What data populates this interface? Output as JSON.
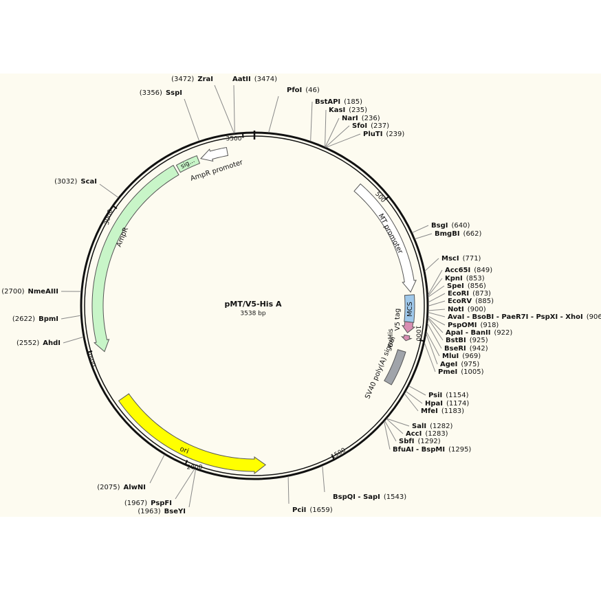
{
  "title": "pMT/V5-His A",
  "subtitle": "3538 bp",
  "ticks": [
    500,
    1000,
    1500,
    2000,
    2500,
    3000,
    3500
  ],
  "features": [
    "AmpR promoter",
    "sig...",
    "AmpR",
    "MT promoter",
    "MCS",
    "V5 tag",
    "6xHis",
    "SV40 poly(A) signal",
    "ori"
  ],
  "sites": [
    {
      "name": "ZraI",
      "position": 3472,
      "label": "(3472)"
    },
    {
      "name": "AatII",
      "position": 3474,
      "label": "(3474)"
    },
    {
      "name": "SspI",
      "position": 3356,
      "label": "(3356)"
    },
    {
      "name": "PfoI",
      "position": 46,
      "label": "(46)"
    },
    {
      "name": "BstAPI",
      "position": 185,
      "label": "(185)"
    },
    {
      "name": "KasI",
      "position": 235,
      "label": "(235)"
    },
    {
      "name": "NarI",
      "position": 236,
      "label": "(236)"
    },
    {
      "name": "SfoI",
      "position": 237,
      "label": "(237)"
    },
    {
      "name": "PluTI",
      "position": 239,
      "label": "(239)"
    },
    {
      "name": "BsgI",
      "position": 640,
      "label": "(640)"
    },
    {
      "name": "BmgBI",
      "position": 662,
      "label": "(662)"
    },
    {
      "name": "MscI",
      "position": 771,
      "label": "(771)"
    },
    {
      "name": "Acc65I",
      "position": 849,
      "label": "(849)"
    },
    {
      "name": "KpnI",
      "position": 853,
      "label": "(853)"
    },
    {
      "name": "SpeI",
      "position": 856,
      "label": "(856)"
    },
    {
      "name": "EcoRI",
      "position": 873,
      "label": "(873)"
    },
    {
      "name": "EcoRV",
      "position": 885,
      "label": "(885)"
    },
    {
      "name": "NotI",
      "position": 900,
      "label": "(900)"
    },
    {
      "name": "AvaI - BsoBI - PaeR7I - PspXI - XhoI",
      "position": 906,
      "label": "(906)"
    },
    {
      "name": "PspOMI",
      "position": 918,
      "label": "(918)"
    },
    {
      "name": "ApaI - BanII",
      "position": 922,
      "label": "(922)"
    },
    {
      "name": "BstBI",
      "position": 925,
      "label": "(925)"
    },
    {
      "name": "BseRI",
      "position": 942,
      "label": "(942)"
    },
    {
      "name": "MluI",
      "position": 969,
      "label": "(969)"
    },
    {
      "name": "AgeI",
      "position": 975,
      "label": "(975)"
    },
    {
      "name": "PmeI",
      "position": 1005,
      "label": "(1005)"
    },
    {
      "name": "PsiI",
      "position": 1154,
      "label": "(1154)"
    },
    {
      "name": "HpaI",
      "position": 1174,
      "label": "(1174)"
    },
    {
      "name": "MfeI",
      "position": 1183,
      "label": "(1183)"
    },
    {
      "name": "SalI",
      "position": 1282,
      "label": "(1282)"
    },
    {
      "name": "AccI",
      "position": 1283,
      "label": "(1283)"
    },
    {
      "name": "SbfI",
      "position": 1292,
      "label": "(1292)"
    },
    {
      "name": "BfuAI - BspMI",
      "position": 1295,
      "label": "(1295)"
    },
    {
      "name": "BspQI - SapI",
      "position": 1543,
      "label": "(1543)"
    },
    {
      "name": "PciI",
      "position": 1659,
      "label": "(1659)"
    },
    {
      "name": "PspFI",
      "position": 1967,
      "label": "(1967)"
    },
    {
      "name": "BseYI",
      "position": 1963,
      "label": "(1963)"
    },
    {
      "name": "AlwNI",
      "position": 2075,
      "label": "(2075)"
    },
    {
      "name": "AhdI",
      "position": 2552,
      "label": "(2552)"
    },
    {
      "name": "BpmI",
      "position": 2622,
      "label": "(2622)"
    },
    {
      "name": "NmeAIII",
      "position": 2700,
      "label": "(2700)"
    },
    {
      "name": "ScaI",
      "position": 3032,
      "label": "(3032)"
    }
  ]
}
